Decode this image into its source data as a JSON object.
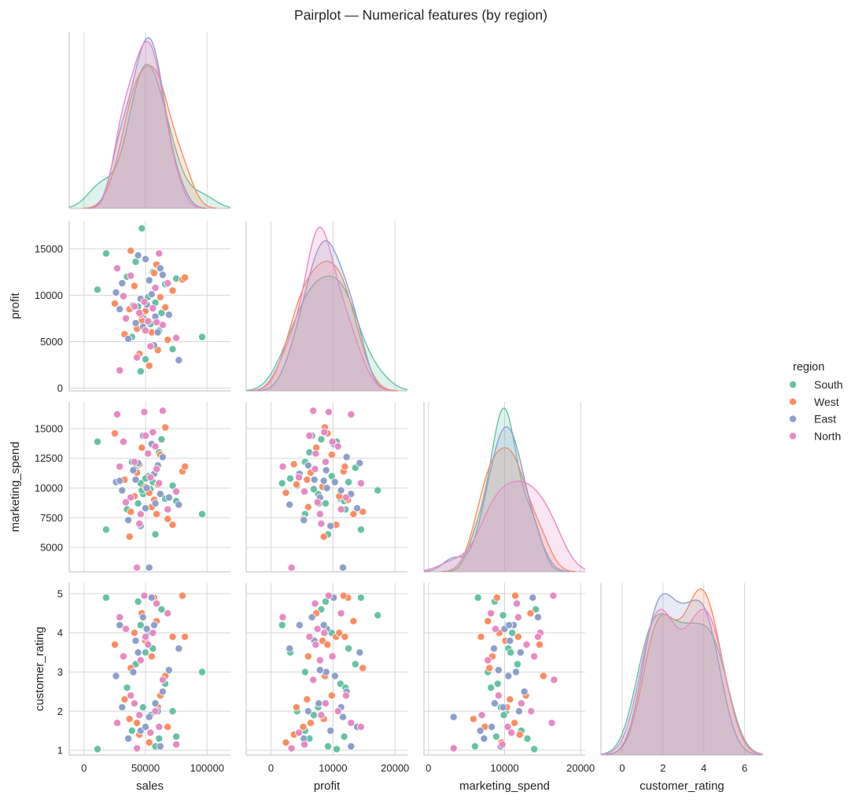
{
  "chart_data": {
    "type": "scatter",
    "subtype": "pairplot (corner, hue KDE diagonal)",
    "title": "Pairplot — Numerical features (by region)",
    "variables": [
      "sales",
      "profit",
      "marketing_spend",
      "customer_rating"
    ],
    "hue": {
      "name": "region",
      "levels": [
        "South",
        "West",
        "East",
        "North"
      ],
      "colors": [
        "#66c2a5",
        "#fc8d62",
        "#8da0cb",
        "#e78ac3"
      ]
    },
    "axis_ranges": {
      "sales": [
        -12000,
        119000
      ],
      "profit": [
        -300,
        18000
      ],
      "marketing_spend": [
        2950,
        17250
      ],
      "customer_rating": [
        0.88,
        5.28
      ]
    },
    "axis_ranges_x": {
      "sales": [
        -12000,
        119000
      ],
      "profit": [
        -4000,
        22000
      ],
      "marketing_spend": [
        -600,
        20600
      ],
      "customer_rating": [
        -1.04,
        6.9
      ]
    },
    "ticks": {
      "x": {
        "sales": [
          "0",
          "50000",
          "100000"
        ],
        "profit": [
          "0",
          "10000",
          "20000"
        ],
        "marketing_spend": [
          "0",
          "10000",
          "20000"
        ],
        "customer_rating": [
          "0",
          "2",
          "4",
          "6"
        ]
      },
      "y": {
        "profit": [
          "0",
          "5000",
          "10000",
          "15000"
        ],
        "marketing_spend": [
          "5000",
          "7500",
          "10000",
          "12500",
          "15000"
        ],
        "customer_rating": [
          "1",
          "2",
          "3",
          "4",
          "5"
        ]
      }
    },
    "grid": true,
    "legend_placement": "right",
    "columns": [
      "sales",
      "profit",
      "marketing_spend",
      "customer_rating",
      "region_index"
    ],
    "records": [
      [
        52000,
        9800,
        11000,
        4.0,
        0
      ],
      [
        48000,
        7600,
        9500,
        2.1,
        0
      ],
      [
        56000,
        12500,
        10500,
        3.6,
        0
      ],
      [
        61000,
        6200,
        13000,
        1.3,
        0
      ],
      [
        44000,
        8800,
        8700,
        4.8,
        0
      ],
      [
        39000,
        5500,
        12200,
        1.5,
        0
      ],
      [
        66000,
        11200,
        9100,
        2.7,
        0
      ],
      [
        72000,
        4200,
        10200,
        2.0,
        0
      ],
      [
        96000,
        5500,
        7800,
        3.0,
        0
      ],
      [
        11000,
        10600,
        13900,
        1.03,
        0
      ],
      [
        18000,
        14500,
        6500,
        4.9,
        0
      ],
      [
        47000,
        17200,
        9800,
        4.45,
        0
      ],
      [
        58000,
        9200,
        6100,
        1.1,
        0
      ],
      [
        50000,
        3100,
        10800,
        3.5,
        0
      ],
      [
        35000,
        12000,
        8200,
        2.6,
        0
      ],
      [
        63000,
        8100,
        14100,
        4.6,
        0
      ],
      [
        54000,
        6900,
        9900,
        1.9,
        0
      ],
      [
        42000,
        13600,
        11700,
        3.2,
        0
      ],
      [
        75000,
        11800,
        8900,
        1.35,
        0
      ],
      [
        46000,
        1800,
        10400,
        4.2,
        0
      ],
      [
        50000,
        8300,
        10100,
        3.8,
        1
      ],
      [
        57000,
        12400,
        9000,
        4.9,
        1
      ],
      [
        43000,
        6400,
        11300,
        1.7,
        1
      ],
      [
        38000,
        14800,
        8000,
        3.1,
        1
      ],
      [
        62000,
        9800,
        12800,
        2.4,
        1
      ],
      [
        68000,
        5200,
        7400,
        1.6,
        1
      ],
      [
        80000,
        11700,
        11400,
        4.95,
        1
      ],
      [
        25000,
        9100,
        14600,
        3.7,
        1
      ],
      [
        53000,
        2400,
        9600,
        1.2,
        1
      ],
      [
        47000,
        7300,
        13400,
        4.5,
        1
      ],
      [
        72000,
        10500,
        6900,
        3.9,
        1
      ],
      [
        33000,
        5800,
        10700,
        2.3,
        1
      ],
      [
        59000,
        13300,
        7800,
        4.3,
        1
      ],
      [
        45000,
        3700,
        12000,
        1.4,
        1
      ],
      [
        66000,
        8700,
        15100,
        2.9,
        1
      ],
      [
        41000,
        11000,
        9300,
        4.0,
        1
      ],
      [
        55000,
        6000,
        8400,
        3.4,
        1
      ],
      [
        82000,
        11900,
        11800,
        3.9,
        1
      ],
      [
        37000,
        8500,
        5900,
        1.8,
        1
      ],
      [
        60000,
        4100,
        10300,
        2.1,
        1
      ],
      [
        51000,
        9000,
        10000,
        4.1,
        2
      ],
      [
        44000,
        14300,
        12100,
        3.5,
        2
      ],
      [
        58000,
        7700,
        8700,
        2.2,
        2
      ],
      [
        26000,
        10300,
        10500,
        2.9,
        2
      ],
      [
        77000,
        3000,
        8600,
        3.6,
        2
      ],
      [
        53000,
        11600,
        3300,
        1.85,
        2
      ],
      [
        48000,
        6600,
        14400,
        4.4,
        2
      ],
      [
        62000,
        12900,
        9500,
        1.1,
        2
      ],
      [
        40000,
        8900,
        11500,
        3.0,
        2
      ],
      [
        36000,
        5300,
        7300,
        1.3,
        2
      ],
      [
        55000,
        10100,
        13700,
        4.9,
        2
      ],
      [
        69000,
        7900,
        9200,
        3.05,
        2
      ],
      [
        31000,
        11300,
        9800,
        2.1,
        2
      ],
      [
        57000,
        4600,
        11200,
        4.2,
        2
      ],
      [
        46000,
        9600,
        6800,
        1.5,
        2
      ],
      [
        64000,
        12200,
        12600,
        2.5,
        2
      ],
      [
        42000,
        7000,
        10700,
        3.8,
        2
      ],
      [
        50000,
        13900,
        8300,
        1.6,
        2
      ],
      [
        29000,
        8500,
        10600,
        4.2,
        2
      ],
      [
        60000,
        6000,
        11900,
        2.0,
        2
      ],
      [
        52000,
        7200,
        12900,
        3.7,
        3
      ],
      [
        43000,
        3300,
        3300,
        1.05,
        3
      ],
      [
        49000,
        9300,
        16400,
        4.95,
        3
      ],
      [
        29000,
        1900,
        11800,
        4.4,
        3
      ],
      [
        64000,
        6800,
        16500,
        2.8,
        3
      ],
      [
        56000,
        8600,
        14700,
        4.0,
        3
      ],
      [
        38000,
        12100,
        9200,
        2.4,
        3
      ],
      [
        27000,
        12900,
        16200,
        1.7,
        3
      ],
      [
        75000,
        5400,
        9700,
        1.15,
        3
      ],
      [
        46000,
        7900,
        7800,
        3.3,
        3
      ],
      [
        58000,
        10800,
        13500,
        2.0,
        3
      ],
      [
        34000,
        7500,
        8800,
        4.1,
        3
      ],
      [
        61000,
        14500,
        10400,
        1.6,
        3
      ],
      [
        50000,
        6200,
        14400,
        3.9,
        3
      ],
      [
        41000,
        8800,
        12200,
        2.2,
        3
      ],
      [
        68000,
        11300,
        8200,
        4.5,
        3
      ],
      [
        54000,
        4500,
        10900,
        1.45,
        3
      ],
      [
        32000,
        9900,
        13900,
        3.4,
        3
      ],
      [
        45000,
        8100,
        7000,
        1.9,
        3
      ],
      [
        59000,
        7100,
        11600,
        4.75,
        3
      ]
    ]
  }
}
